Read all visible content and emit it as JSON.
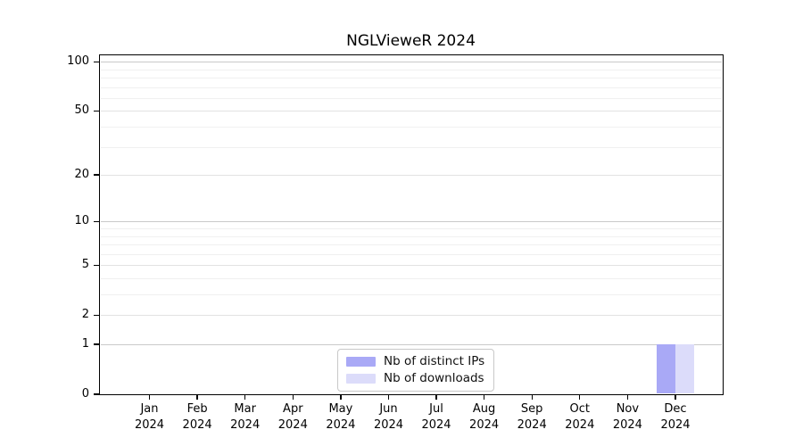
{
  "chart_data": {
    "type": "bar",
    "title": "NGLVieweR 2024",
    "xlabel": "",
    "ylabel": "",
    "months": [
      "Jan",
      "Feb",
      "Mar",
      "Apr",
      "May",
      "Jun",
      "Jul",
      "Aug",
      "Sep",
      "Oct",
      "Nov",
      "Dec"
    ],
    "year": "2024",
    "categories": [
      "Jan 2024",
      "Feb 2024",
      "Mar 2024",
      "Apr 2024",
      "May 2024",
      "Jun 2024",
      "Jul 2024",
      "Aug 2024",
      "Sep 2024",
      "Oct 2024",
      "Nov 2024",
      "Dec 2024"
    ],
    "series": [
      {
        "name": "Nb of distinct IPs",
        "color": "#a9a9f6",
        "values": [
          0,
          0,
          0,
          0,
          0,
          0,
          0,
          0,
          0,
          0,
          0,
          1
        ]
      },
      {
        "name": "Nb of downloads",
        "color": "#dcdcfa",
        "values": [
          0,
          0,
          0,
          0,
          0,
          0,
          0,
          0,
          0,
          0,
          0,
          1
        ]
      }
    ],
    "y_ticks": [
      0,
      1,
      2,
      5,
      10,
      20,
      50,
      100
    ],
    "minor_grid_values": [
      3,
      4,
      6,
      7,
      8,
      9,
      30,
      40,
      60,
      70,
      80,
      90
    ],
    "y_scale": "log1p",
    "ylim": [
      0,
      113
    ],
    "grid": true,
    "legend_position": "bottom-center"
  },
  "legend": {
    "entries": [
      "Nb of distinct IPs",
      "Nb of downloads"
    ]
  }
}
